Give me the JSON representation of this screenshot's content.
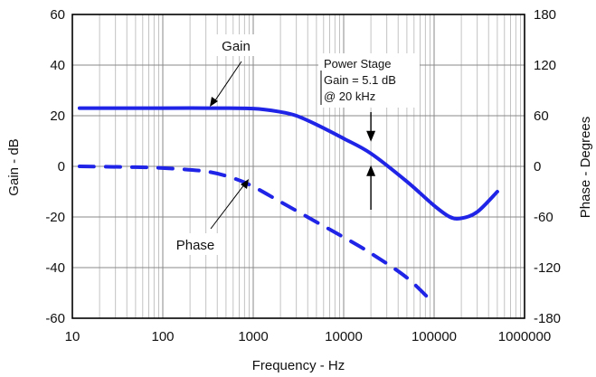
{
  "chart_data": {
    "type": "line",
    "xlabel": "Frequency - Hz",
    "ylabel": "Gain - dB",
    "y2label": "Phase - Degrees",
    "x_scale": "log",
    "xlim": [
      10,
      1000000
    ],
    "ylim": [
      -60,
      60
    ],
    "y2lim": [
      -180,
      180
    ],
    "x_ticks": [
      "10",
      "100",
      "1000",
      "10000",
      "100000",
      "1000000"
    ],
    "y_ticks": [
      "60",
      "40",
      "20",
      "0",
      "-20",
      "-40",
      "-60"
    ],
    "y2_ticks": [
      "180",
      "120",
      "60",
      "0",
      "-60",
      "-120",
      "-180"
    ],
    "grid": true,
    "colors": {
      "series": "#1f24e6",
      "grid": "#b4b4b4",
      "frame": "#000000"
    },
    "series": [
      {
        "name": "Gain",
        "axis": "left",
        "style": "solid",
        "x": [
          12,
          100,
          300,
          1000,
          2000,
          3000,
          5000,
          10000,
          20000,
          50000,
          100000,
          150000,
          200000,
          300000,
          500000
        ],
        "y": [
          23,
          23,
          23,
          22.8,
          21.5,
          20,
          16.5,
          11,
          5.1,
          -6,
          -15.5,
          -20,
          -20.5,
          -18,
          -10
        ]
      },
      {
        "name": "Phase",
        "axis": "right",
        "style": "dashed",
        "x": [
          12,
          50,
          100,
          300,
          600,
          1000,
          2000,
          5000,
          10000,
          20000,
          50000,
          100000
        ],
        "y": [
          0,
          -1,
          -2,
          -6,
          -14,
          -24,
          -42,
          -66,
          -84,
          -103,
          -132,
          -163
        ]
      }
    ],
    "annotations": {
      "gain_label": "Gain",
      "phase_label": "Phase",
      "callout": {
        "lines": [
          "Power Stage",
          "Gain = 5.1 dB",
          "@ 20 kHz"
        ],
        "x": 20000,
        "y": 5.1
      }
    }
  }
}
